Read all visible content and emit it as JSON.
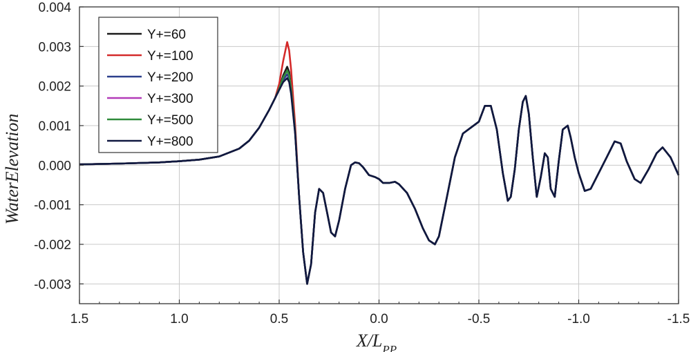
{
  "chart_data": {
    "type": "line",
    "xlabel": "X/L",
    "xlabel_sub": "PP",
    "ylabel": "WaterElevation",
    "xlim": [
      1.5,
      -1.5
    ],
    "ylim": [
      -0.0035,
      0.004
    ],
    "x_ticks": [
      1.5,
      1.0,
      0.5,
      0.0,
      -0.5,
      -1.0,
      -1.5
    ],
    "x_tick_labels": [
      "1.5",
      "1.0",
      "0.5",
      "0.0",
      "-0.5",
      "-1.0",
      "-1.5"
    ],
    "y_ticks": [
      -0.003,
      -0.002,
      -0.001,
      0.0,
      0.001,
      0.002,
      0.003,
      0.004
    ],
    "y_tick_labels": [
      "-0.003",
      "-0.002",
      "-0.001",
      "0.000",
      "0.001",
      "0.002",
      "0.003",
      "0.004"
    ],
    "grid": true,
    "legend_position": "top-left",
    "series": [
      {
        "name": "Y+=60",
        "color": "#1a1a1a",
        "peak": 0.0024
      },
      {
        "name": "Y+=100",
        "color": "#d42a2a",
        "peak": 0.00305
      },
      {
        "name": "Y+=200",
        "color": "#2b3f8c",
        "peak": 0.0022
      },
      {
        "name": "Y+=300",
        "color": "#b23ab8",
        "peak": 0.0023
      },
      {
        "name": "Y+=500",
        "color": "#2f8a3a",
        "peak": 0.0023
      },
      {
        "name": "Y+=800",
        "color": "#101840",
        "peak": 0.0021
      }
    ],
    "base_curve": {
      "x": [
        1.5,
        1.3,
        1.1,
        1.0,
        0.9,
        0.8,
        0.7,
        0.65,
        0.6,
        0.55,
        0.52,
        0.5,
        0.48,
        0.46,
        0.45,
        0.44,
        0.42,
        0.4,
        0.38,
        0.36,
        0.34,
        0.32,
        0.3,
        0.28,
        0.26,
        0.24,
        0.22,
        0.2,
        0.17,
        0.14,
        0.12,
        0.1,
        0.08,
        0.05,
        0.02,
        0.0,
        -0.02,
        -0.05,
        -0.08,
        -0.1,
        -0.14,
        -0.18,
        -0.22,
        -0.25,
        -0.28,
        -0.3,
        -0.34,
        -0.38,
        -0.42,
        -0.46,
        -0.5,
        -0.53,
        -0.56,
        -0.59,
        -0.62,
        -0.645,
        -0.66,
        -0.68,
        -0.7,
        -0.72,
        -0.735,
        -0.75,
        -0.77,
        -0.79,
        -0.81,
        -0.83,
        -0.845,
        -0.86,
        -0.88,
        -0.9,
        -0.92,
        -0.945,
        -0.96,
        -0.98,
        -1.0,
        -1.03,
        -1.06,
        -1.1,
        -1.14,
        -1.18,
        -1.21,
        -1.24,
        -1.28,
        -1.31,
        -1.35,
        -1.39,
        -1.42,
        -1.46,
        -1.5
      ],
      "y": [
        2e-05,
        4e-05,
        7e-05,
        0.0001,
        0.00014,
        0.00022,
        0.00042,
        0.00062,
        0.00095,
        0.0014,
        0.0017,
        0.0019,
        0.0021,
        0.0022,
        0.0021,
        0.0018,
        0.0008,
        -0.0008,
        -0.0022,
        -0.003,
        -0.0025,
        -0.0012,
        -0.0006,
        -0.0007,
        -0.0012,
        -0.0017,
        -0.0018,
        -0.0014,
        -0.0006,
        0.0,
        7e-05,
        5e-05,
        -5e-05,
        -0.00025,
        -0.0003,
        -0.00035,
        -0.00045,
        -0.00045,
        -0.00042,
        -0.00048,
        -0.0007,
        -0.0011,
        -0.0016,
        -0.0019,
        -0.002,
        -0.0018,
        -0.0008,
        0.0002,
        0.0008,
        0.00095,
        0.0011,
        0.0015,
        0.0015,
        0.0009,
        -0.0002,
        -0.0009,
        -0.0008,
        -0.0001,
        0.0009,
        0.0016,
        0.00175,
        0.0013,
        0.0002,
        -0.0008,
        -0.0003,
        0.0003,
        0.0002,
        -0.0006,
        -0.0008,
        0.0001,
        0.0009,
        0.001,
        0.0007,
        0.0002,
        -0.0002,
        -0.00065,
        -0.0006,
        -0.0002,
        0.0002,
        0.0006,
        0.00055,
        0.0001,
        -0.00035,
        -0.00045,
        -0.0001,
        0.0003,
        0.00045,
        0.0002,
        -0.00025
      ]
    }
  }
}
